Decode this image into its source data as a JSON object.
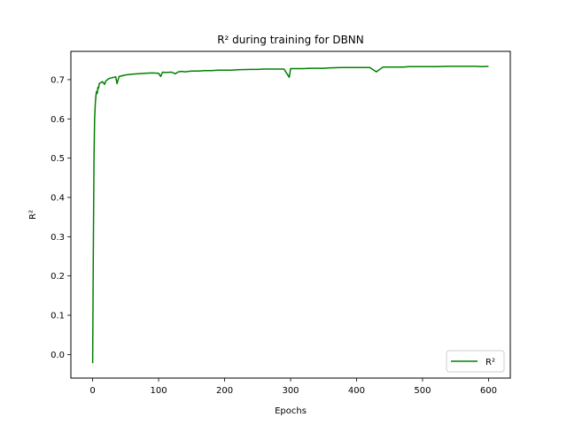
{
  "chart_data": {
    "type": "line",
    "title": "R² during training for DBNN",
    "xlabel": "Epochs",
    "ylabel": "R²",
    "xlim": [
      -33,
      633
    ],
    "ylim": [
      -0.06,
      0.772
    ],
    "xticks": [
      0,
      100,
      200,
      300,
      400,
      500,
      600
    ],
    "yticks": [
      0.0,
      0.1,
      0.2,
      0.3,
      0.4,
      0.5,
      0.6,
      0.7
    ],
    "ytick_labels": [
      "0.0",
      "0.1",
      "0.2",
      "0.3",
      "0.4",
      "0.5",
      "0.6",
      "0.7"
    ],
    "grid": false,
    "legend_position": "lower right",
    "series": [
      {
        "name": "R²",
        "color": "#008000",
        "x": [
          0,
          1,
          2,
          3,
          4,
          5,
          6,
          7,
          8,
          9,
          10,
          12,
          15,
          18,
          20,
          25,
          30,
          35,
          37,
          40,
          45,
          50,
          60,
          70,
          80,
          90,
          100,
          103,
          106,
          110,
          120,
          125,
          130,
          135,
          140,
          150,
          160,
          170,
          180,
          190,
          200,
          210,
          220,
          240,
          250,
          260,
          270,
          280,
          290,
          298,
          300,
          310,
          320,
          330,
          340,
          350,
          360,
          380,
          400,
          420,
          430,
          440,
          450,
          460,
          470,
          480,
          500,
          520,
          540,
          560,
          580,
          590,
          600
        ],
        "values": [
          -0.022,
          0.25,
          0.5,
          0.6,
          0.64,
          0.66,
          0.67,
          0.665,
          0.68,
          0.678,
          0.69,
          0.692,
          0.695,
          0.688,
          0.697,
          0.703,
          0.705,
          0.707,
          0.69,
          0.708,
          0.71,
          0.712,
          0.714,
          0.715,
          0.716,
          0.717,
          0.716,
          0.708,
          0.719,
          0.718,
          0.719,
          0.715,
          0.72,
          0.721,
          0.72,
          0.722,
          0.722,
          0.723,
          0.723,
          0.724,
          0.724,
          0.724,
          0.725,
          0.726,
          0.726,
          0.727,
          0.727,
          0.727,
          0.727,
          0.706,
          0.728,
          0.728,
          0.728,
          0.729,
          0.729,
          0.729,
          0.73,
          0.731,
          0.731,
          0.731,
          0.72,
          0.732,
          0.732,
          0.732,
          0.732,
          0.733,
          0.733,
          0.733,
          0.734,
          0.734,
          0.734,
          0.733,
          0.734
        ]
      }
    ]
  }
}
